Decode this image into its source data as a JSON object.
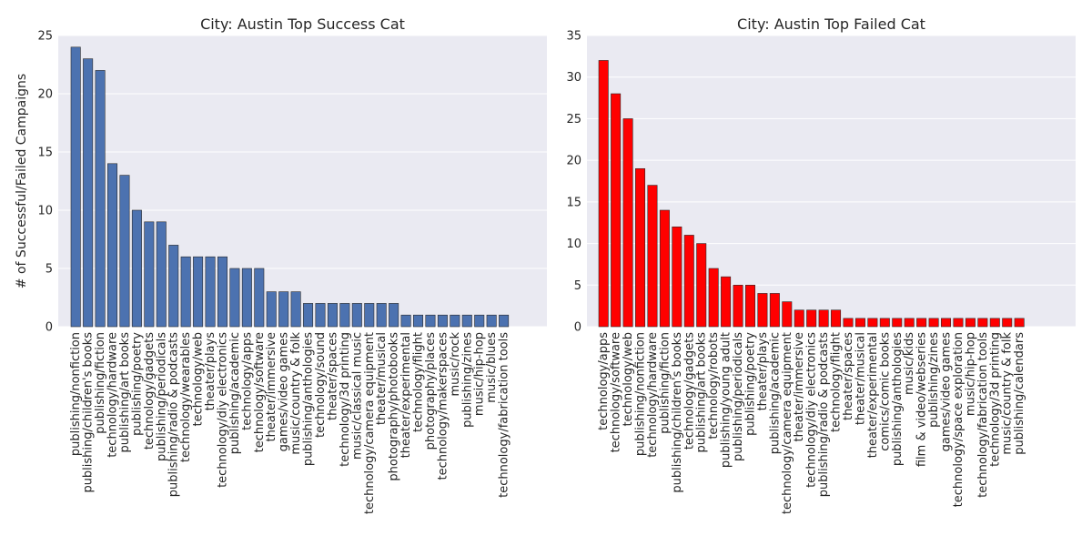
{
  "chart_data": [
    {
      "type": "bar",
      "title": "City: Austin Top Success Cat",
      "ylabel": "# of Successful/Failed Campaigns",
      "xlabel": "",
      "ylim": [
        0,
        25
      ],
      "yticks": [
        0,
        5,
        10,
        15,
        20,
        25
      ],
      "grid": true,
      "bar_color": "#4c72b0",
      "background": "#eaeaf2",
      "categories": [
        "publishing/nonfiction",
        "publishing/children's books",
        "publishing/fiction",
        "technology/hardware",
        "publishing/art books",
        "publishing/poetry",
        "technology/gadgets",
        "publishing/periodicals",
        "publishing/radio & podcasts",
        "technology/wearables",
        "technology/web",
        "theater/plays",
        "technology/diy electronics",
        "publishing/academic",
        "technology/apps",
        "technology/software",
        "theater/immersive",
        "games/video games",
        "music/country & folk",
        "publishing/anthologies",
        "technology/sound",
        "theater/spaces",
        "technology/3d printing",
        "music/classical music",
        "technology/camera equipment",
        "theater/musical",
        "photography/photobooks",
        "theater/experimental",
        "technology/flight",
        "photography/places",
        "technology/makerspaces",
        "music/rock",
        "publishing/zines",
        "music/hip-hop",
        "music/blues",
        "technology/fabrication tools"
      ],
      "values": [
        24,
        23,
        22,
        14,
        13,
        10,
        9,
        9,
        7,
        6,
        6,
        6,
        6,
        5,
        5,
        5,
        3,
        3,
        3,
        2,
        2,
        2,
        2,
        2,
        2,
        2,
        2,
        1,
        1,
        1,
        1,
        1,
        1,
        1,
        1,
        1
      ]
    },
    {
      "type": "bar",
      "title": "City: Austin Top Failed Cat",
      "ylabel": "",
      "xlabel": "",
      "ylim": [
        0,
        35
      ],
      "yticks": [
        0,
        5,
        10,
        15,
        20,
        25,
        30,
        35
      ],
      "grid": true,
      "bar_color": "#ff0000",
      "background": "#eaeaf2",
      "categories": [
        "technology/apps",
        "technology/software",
        "technology/web",
        "publishing/nonfiction",
        "technology/hardware",
        "publishing/fiction",
        "publishing/children's books",
        "technology/gadgets",
        "publishing/art books",
        "technology/robots",
        "publishing/young adult",
        "publishing/periodicals",
        "publishing/poetry",
        "theater/plays",
        "publishing/academic",
        "technology/camera equipment",
        "theater/immersive",
        "technology/diy electronics",
        "publishing/radio & podcasts",
        "technology/flight",
        "theater/spaces",
        "theater/musical",
        "theater/experimental",
        "comics/comic books",
        "publishing/anthologies",
        "music/kids",
        "film & video/webseries",
        "publishing/zines",
        "games/video games",
        "technology/space exploration",
        "music/hip-hop",
        "technology/fabrication tools",
        "technology/3d printing",
        "music/country & folk",
        "publishing/calendars"
      ],
      "values": [
        32,
        28,
        25,
        19,
        17,
        14,
        12,
        11,
        10,
        7,
        6,
        5,
        5,
        4,
        4,
        3,
        2,
        2,
        2,
        2,
        1,
        1,
        1,
        1,
        1,
        1,
        1,
        1,
        1,
        1,
        1,
        1,
        1,
        1,
        1
      ]
    }
  ]
}
